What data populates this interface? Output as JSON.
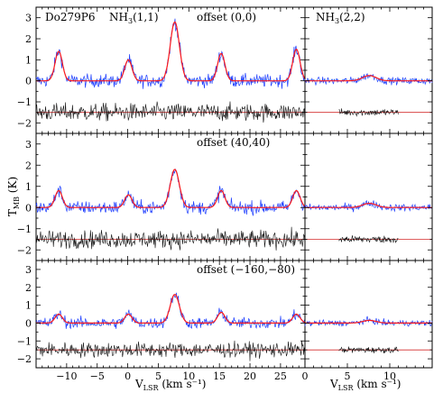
{
  "figure": {
    "source_label": "Do279P6",
    "panel_headers": {
      "left": "NH3(1,1)",
      "right": "NH3(2,2)"
    },
    "offsets": [
      "offset (0,0)",
      "offset (40,40)",
      "offset (−160,−80)"
    ],
    "xlabel": "V",
    "xlabel_sub": "LSR",
    "xlabel_unit": "(km s⁻¹)",
    "ylabel": "T",
    "ylabel_sub": "MB",
    "ylabel_unit": "(K)"
  },
  "colors": {
    "observed": "#1f3fff",
    "fit": "#ff1a1a",
    "residual": "#111111",
    "baseline": "#d42a2a",
    "frame": "#000000"
  },
  "chart_data": {
    "type": "line",
    "layout": "3 rows x 2 columns, shared y axis per row, shared x per column",
    "left_column": {
      "title": "NH3(1,1)",
      "xlim": [
        -15,
        29
      ],
      "xticks": [
        -10,
        -5,
        0,
        5,
        10,
        15,
        20,
        25
      ],
      "edge_tick_label": "0",
      "hyperfine_components_kms": [
        -11.3,
        0.1,
        7.7,
        15.3,
        27.6
      ]
    },
    "right_column": {
      "title": "NH3(2,2)",
      "xlim": [
        0,
        15
      ],
      "xticks": [
        0,
        5,
        10
      ],
      "line_center_kms": 7.6,
      "residual_range_kms": [
        4,
        11
      ]
    },
    "ylim": [
      -2.5,
      3.5
    ],
    "yticks": [
      -2,
      -1,
      0,
      1,
      2,
      3
    ],
    "residual_offset_K": -1.5,
    "rows": [
      {
        "offset": "offset (0,0)",
        "nh3_11_peaks_K": [
          1.4,
          1.0,
          2.8,
          1.3,
          1.5
        ],
        "nh3_22_peak_K": 0.25
      },
      {
        "offset": "offset (40,40)",
        "nh3_11_peaks_K": [
          0.8,
          0.6,
          1.8,
          0.8,
          0.8
        ],
        "nh3_22_peak_K": 0.2
      },
      {
        "offset": "offset (−160,−80)",
        "nh3_11_peaks_K": [
          0.5,
          0.5,
          1.6,
          0.6,
          0.5
        ],
        "nh3_22_peak_K": 0.15
      }
    ]
  }
}
